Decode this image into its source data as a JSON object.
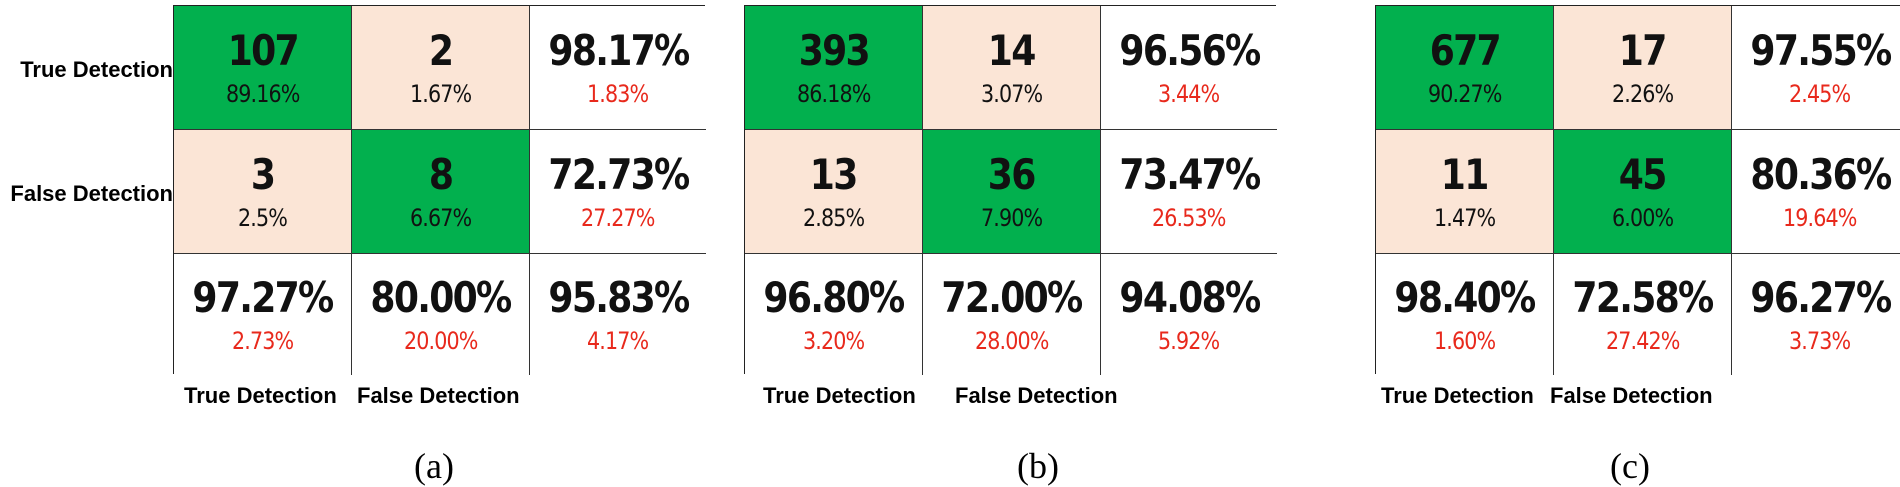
{
  "chart_data": [
    {
      "type": "table",
      "caption": "(a)",
      "row_labels": [
        "True Detection",
        "False Detection"
      ],
      "col_labels": [
        "True Detection",
        "False Detection"
      ],
      "cells": [
        [
          {
            "value": "107",
            "pct": "89.16%"
          },
          {
            "value": "2",
            "pct": "1.67%"
          },
          {
            "value": "98.17%",
            "pct": "1.83%"
          }
        ],
        [
          {
            "value": "3",
            "pct": "2.5%"
          },
          {
            "value": "8",
            "pct": "6.67%"
          },
          {
            "value": "72.73%",
            "pct": "27.27%"
          }
        ],
        [
          {
            "value": "97.27%",
            "pct": "2.73%"
          },
          {
            "value": "80.00%",
            "pct": "20.00%"
          },
          {
            "value": "95.83%",
            "pct": "4.17%"
          }
        ]
      ]
    },
    {
      "type": "table",
      "caption": "(b)",
      "col_labels": [
        "True Detection",
        "False Detection"
      ],
      "cells": [
        [
          {
            "value": "393",
            "pct": "86.18%"
          },
          {
            "value": "14",
            "pct": "3.07%"
          },
          {
            "value": "96.56%",
            "pct": "3.44%"
          }
        ],
        [
          {
            "value": "13",
            "pct": "2.85%"
          },
          {
            "value": "36",
            "pct": "7.90%"
          },
          {
            "value": "73.47%",
            "pct": "26.53%"
          }
        ],
        [
          {
            "value": "96.80%",
            "pct": "3.20%"
          },
          {
            "value": "72.00%",
            "pct": "28.00%"
          },
          {
            "value": "94.08%",
            "pct": "5.92%"
          }
        ]
      ]
    },
    {
      "type": "table",
      "caption": "(c)",
      "col_labels": [
        "True Detection",
        "False Detection"
      ],
      "cells": [
        [
          {
            "value": "677",
            "pct": "90.27%"
          },
          {
            "value": "17",
            "pct": "2.26%"
          },
          {
            "value": "97.55%",
            "pct": "2.45%"
          }
        ],
        [
          {
            "value": "11",
            "pct": "1.47%"
          },
          {
            "value": "45",
            "pct": "6.00%"
          },
          {
            "value": "80.36%",
            "pct": "19.64%"
          }
        ],
        [
          {
            "value": "98.40%",
            "pct": "1.60%"
          },
          {
            "value": "72.58%",
            "pct": "27.42%"
          },
          {
            "value": "96.27%",
            "pct": "3.73%"
          }
        ]
      ]
    }
  ],
  "colors": {
    "correct": "#02b04e",
    "incorrect": "#fbe5d6",
    "summary": "#ffffff",
    "error_text": "#e8291c"
  }
}
